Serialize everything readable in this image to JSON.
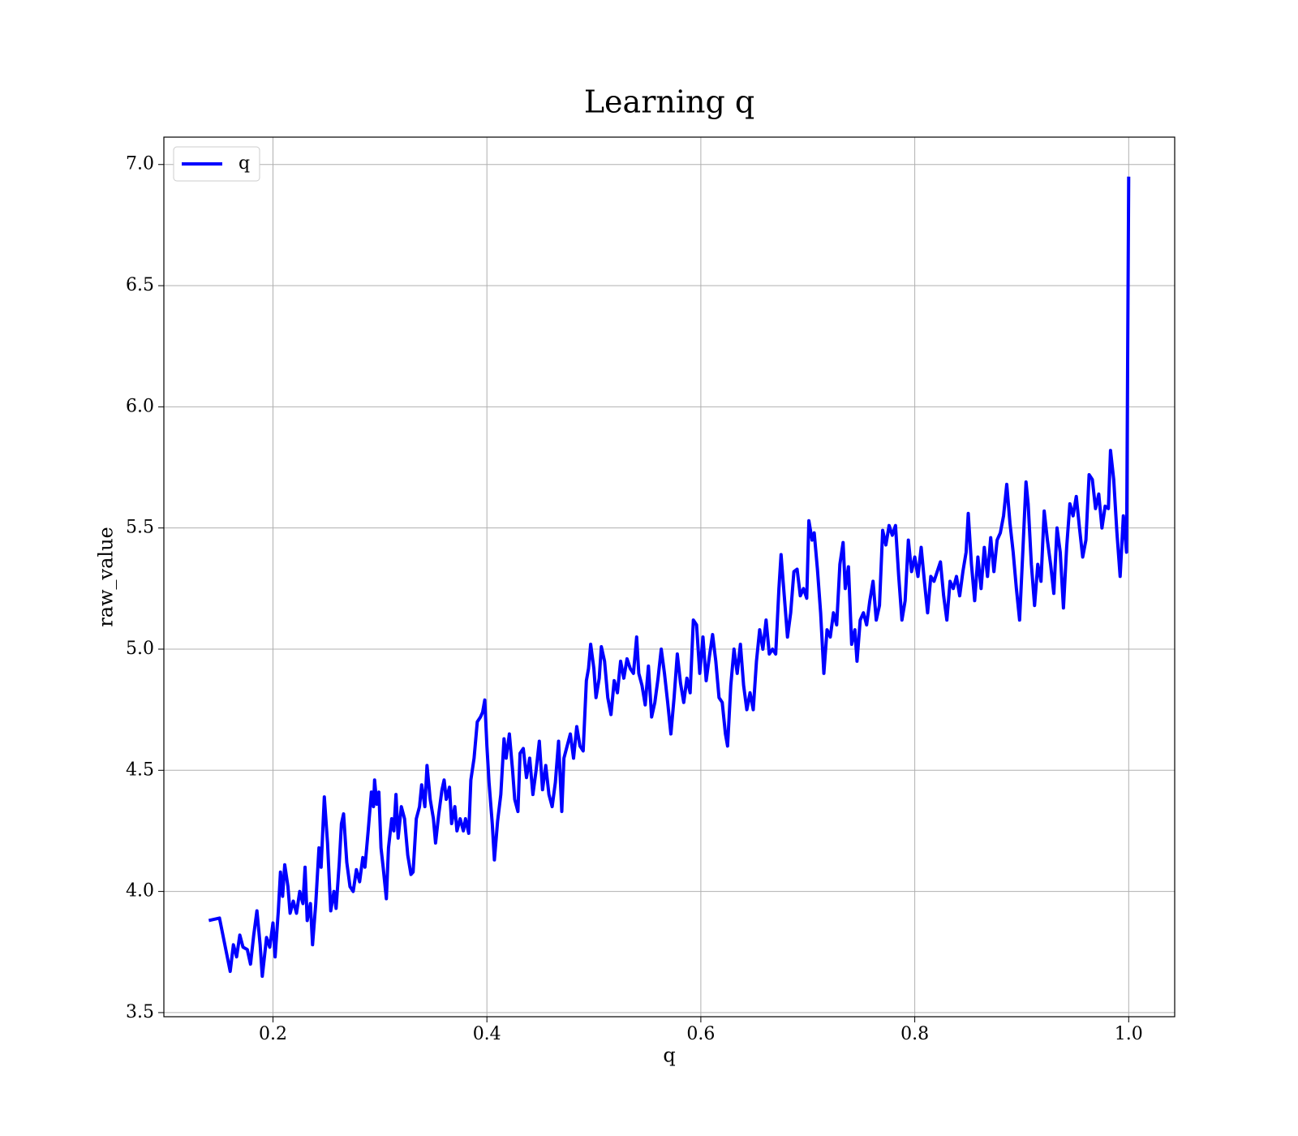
{
  "chart_data": {
    "type": "line",
    "title": "Learning q",
    "xlabel": "q",
    "ylabel": "raw_value",
    "x": [
      0.14,
      0.15,
      0.16,
      0.163,
      0.166,
      0.169,
      0.172,
      0.176,
      0.179,
      0.182,
      0.185,
      0.188,
      0.19,
      0.194,
      0.197,
      0.2,
      0.202,
      0.205,
      0.207,
      0.209,
      0.211,
      0.214,
      0.216,
      0.219,
      0.222,
      0.225,
      0.228,
      0.23,
      0.232,
      0.235,
      0.237,
      0.24,
      0.243,
      0.245,
      0.248,
      0.251,
      0.254,
      0.257,
      0.259,
      0.262,
      0.264,
      0.266,
      0.269,
      0.272,
      0.275,
      0.278,
      0.281,
      0.284,
      0.286,
      0.289,
      0.292,
      0.294,
      0.295,
      0.297,
      0.299,
      0.301,
      0.303,
      0.306,
      0.308,
      0.311,
      0.313,
      0.315,
      0.317,
      0.32,
      0.323,
      0.326,
      0.329,
      0.331,
      0.334,
      0.337,
      0.339,
      0.342,
      0.344,
      0.347,
      0.35,
      0.352,
      0.355,
      0.358,
      0.36,
      0.362,
      0.365,
      0.367,
      0.37,
      0.372,
      0.375,
      0.378,
      0.38,
      0.383,
      0.385,
      0.388,
      0.391,
      0.394,
      0.396,
      0.398,
      0.4,
      0.402,
      0.405,
      0.407,
      0.41,
      0.413,
      0.416,
      0.418,
      0.421,
      0.424,
      0.426,
      0.429,
      0.431,
      0.434,
      0.437,
      0.44,
      0.443,
      0.446,
      0.449,
      0.452,
      0.455,
      0.458,
      0.461,
      0.464,
      0.467,
      0.47,
      0.472,
      0.475,
      0.478,
      0.481,
      0.484,
      0.487,
      0.49,
      0.493,
      0.495,
      0.497,
      0.5,
      0.502,
      0.505,
      0.507,
      0.51,
      0.513,
      0.516,
      0.519,
      0.522,
      0.525,
      0.528,
      0.531,
      0.534,
      0.537,
      0.54,
      0.542,
      0.545,
      0.548,
      0.551,
      0.554,
      0.557,
      0.56,
      0.563,
      0.566,
      0.569,
      0.572,
      0.575,
      0.578,
      0.581,
      0.584,
      0.587,
      0.59,
      0.593,
      0.596,
      0.599,
      0.602,
      0.605,
      0.608,
      0.611,
      0.614,
      0.617,
      0.62,
      0.623,
      0.625,
      0.628,
      0.631,
      0.634,
      0.637,
      0.64,
      0.643,
      0.646,
      0.649,
      0.652,
      0.655,
      0.658,
      0.661,
      0.664,
      0.667,
      0.67,
      0.673,
      0.675,
      0.678,
      0.681,
      0.684,
      0.687,
      0.69,
      0.693,
      0.696,
      0.699,
      0.701,
      0.704,
      0.706,
      0.709,
      0.712,
      0.715,
      0.718,
      0.721,
      0.724,
      0.727,
      0.73,
      0.733,
      0.735,
      0.738,
      0.741,
      0.744,
      0.746,
      0.749,
      0.752,
      0.755,
      0.758,
      0.761,
      0.764,
      0.767,
      0.77,
      0.773,
      0.776,
      0.779,
      0.782,
      0.785,
      0.788,
      0.791,
      0.794,
      0.797,
      0.8,
      0.803,
      0.806,
      0.809,
      0.812,
      0.815,
      0.818,
      0.821,
      0.824,
      0.827,
      0.83,
      0.833,
      0.836,
      0.839,
      0.842,
      0.845,
      0.848,
      0.85,
      0.853,
      0.856,
      0.859,
      0.862,
      0.865,
      0.868,
      0.871,
      0.874,
      0.877,
      0.88,
      0.883,
      0.886,
      0.889,
      0.892,
      0.895,
      0.898,
      0.901,
      0.904,
      0.906,
      0.909,
      0.912,
      0.915,
      0.918,
      0.921,
      0.924,
      0.927,
      0.93,
      0.933,
      0.936,
      0.939,
      0.942,
      0.945,
      0.948,
      0.951,
      0.954,
      0.957,
      0.96,
      0.963,
      0.966,
      0.969,
      0.972,
      0.975,
      0.978,
      0.981,
      0.983,
      0.986,
      0.989,
      0.992,
      0.995,
      0.998,
      1.0
    ],
    "series": [
      {
        "name": "q",
        "color": "#0000ff",
        "values": [
          3.88,
          3.89,
          3.67,
          3.78,
          3.73,
          3.82,
          3.77,
          3.76,
          3.7,
          3.82,
          3.92,
          3.78,
          3.65,
          3.81,
          3.77,
          3.87,
          3.73,
          3.92,
          4.08,
          3.98,
          4.11,
          4.02,
          3.91,
          3.96,
          3.91,
          4.0,
          3.95,
          4.1,
          3.88,
          3.95,
          3.78,
          3.95,
          4.18,
          4.1,
          4.39,
          4.2,
          3.92,
          4.0,
          3.93,
          4.12,
          4.28,
          4.32,
          4.12,
          4.02,
          4.0,
          4.09,
          4.04,
          4.14,
          4.1,
          4.25,
          4.41,
          4.35,
          4.46,
          4.36,
          4.41,
          4.18,
          4.1,
          3.97,
          4.18,
          4.3,
          4.25,
          4.4,
          4.22,
          4.35,
          4.3,
          4.15,
          4.07,
          4.08,
          4.3,
          4.35,
          4.44,
          4.35,
          4.52,
          4.38,
          4.3,
          4.2,
          4.32,
          4.42,
          4.46,
          4.38,
          4.43,
          4.28,
          4.35,
          4.25,
          4.3,
          4.25,
          4.3,
          4.24,
          4.46,
          4.55,
          4.7,
          4.72,
          4.74,
          4.79,
          4.6,
          4.45,
          4.28,
          4.13,
          4.29,
          4.4,
          4.63,
          4.55,
          4.65,
          4.5,
          4.38,
          4.33,
          4.57,
          4.59,
          4.47,
          4.55,
          4.4,
          4.5,
          4.62,
          4.42,
          4.52,
          4.4,
          4.35,
          4.45,
          4.62,
          4.33,
          4.55,
          4.6,
          4.65,
          4.55,
          4.68,
          4.6,
          4.58,
          4.87,
          4.92,
          5.02,
          4.92,
          4.8,
          4.88,
          5.01,
          4.95,
          4.8,
          4.73,
          4.87,
          4.82,
          4.95,
          4.88,
          4.96,
          4.92,
          4.9,
          5.05,
          4.9,
          4.85,
          4.77,
          4.93,
          4.72,
          4.78,
          4.88,
          5.0,
          4.9,
          4.78,
          4.65,
          4.8,
          4.98,
          4.86,
          4.78,
          4.88,
          4.82,
          5.12,
          5.1,
          4.9,
          5.05,
          4.87,
          4.97,
          5.06,
          4.95,
          4.8,
          4.78,
          4.65,
          4.6,
          4.85,
          5.0,
          4.9,
          5.02,
          4.85,
          4.75,
          4.82,
          4.75,
          4.95,
          5.08,
          5.0,
          5.12,
          4.98,
          5.0,
          4.98,
          5.25,
          5.39,
          5.22,
          5.05,
          5.15,
          5.32,
          5.33,
          5.22,
          5.25,
          5.21,
          5.53,
          5.45,
          5.48,
          5.33,
          5.15,
          4.9,
          5.08,
          5.05,
          5.15,
          5.1,
          5.35,
          5.44,
          5.25,
          5.34,
          5.02,
          5.08,
          4.95,
          5.12,
          5.15,
          5.1,
          5.2,
          5.28,
          5.12,
          5.18,
          5.49,
          5.43,
          5.51,
          5.47,
          5.51,
          5.3,
          5.12,
          5.2,
          5.45,
          5.32,
          5.38,
          5.3,
          5.42,
          5.28,
          5.15,
          5.3,
          5.28,
          5.32,
          5.36,
          5.22,
          5.12,
          5.28,
          5.25,
          5.3,
          5.22,
          5.32,
          5.4,
          5.56,
          5.35,
          5.2,
          5.38,
          5.25,
          5.42,
          5.3,
          5.46,
          5.32,
          5.45,
          5.48,
          5.55,
          5.68,
          5.52,
          5.4,
          5.25,
          5.12,
          5.4,
          5.69,
          5.6,
          5.35,
          5.18,
          5.35,
          5.28,
          5.57,
          5.45,
          5.35,
          5.23,
          5.5,
          5.4,
          5.17,
          5.42,
          5.6,
          5.55,
          5.63,
          5.5,
          5.38,
          5.45,
          5.72,
          5.7,
          5.58,
          5.64,
          5.5,
          5.59,
          5.58,
          5.82,
          5.7,
          5.48,
          5.3,
          5.55,
          5.4,
          6.95
        ]
      }
    ],
    "xlim": [
      0.098,
      1.043
    ],
    "ylim": [
      3.483,
      7.113
    ],
    "xticks": [
      0.2,
      0.4,
      0.6,
      0.8,
      {
        "value": 1.0,
        "label": "1.0"
      }
    ],
    "yticks": [
      3.5,
      {
        "value": 4.0,
        "label": "4.0"
      },
      4.5,
      {
        "value": 5.0,
        "label": "5.0"
      },
      5.5,
      {
        "value": 6.0,
        "label": "6.0"
      },
      6.5,
      {
        "value": 7.0,
        "label": "7.0"
      }
    ],
    "grid": true,
    "legend": "upper left"
  }
}
